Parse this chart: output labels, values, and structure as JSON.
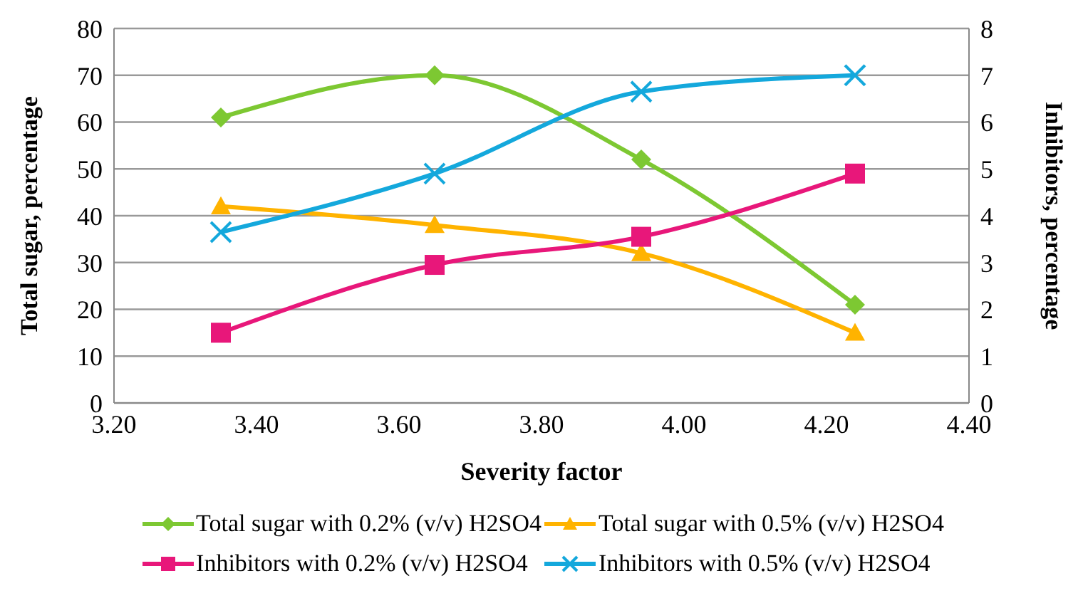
{
  "chart_data": {
    "type": "line",
    "xlabel": "Severity factor",
    "ylabel": "Total sugar, percentage",
    "y2label": "Inhibitors, percentage",
    "x": [
      3.35,
      3.65,
      3.94,
      4.24
    ],
    "xlim": [
      3.2,
      4.4
    ],
    "xticks": [
      {
        "value": 3.2,
        "label": "3.20"
      },
      {
        "value": 3.4,
        "label": "3.40"
      },
      {
        "value": 3.6,
        "label": "3.60"
      },
      {
        "value": 3.8,
        "label": "3.80"
      },
      {
        "value": 4.0,
        "label": "4.00"
      },
      {
        "value": 4.2,
        "label": "4.20"
      },
      {
        "value": 4.4,
        "label": "4.40"
      }
    ],
    "ylim": [
      0,
      80
    ],
    "yticks": [
      0,
      10,
      20,
      30,
      40,
      50,
      60,
      70,
      80
    ],
    "y2lim": [
      0,
      8
    ],
    "y2ticks": [
      0,
      1,
      2,
      3,
      4,
      5,
      6,
      7,
      8
    ],
    "grid": "y",
    "legend": "bottom",
    "series": [
      {
        "name": "Total sugar with 0.2% (v/v) H2SO4",
        "color": "#7dc832",
        "marker": "diamond",
        "values": [
          61,
          70,
          52,
          21
        ]
      },
      {
        "name": "Total sugar with 0.5% (v/v) H2SO4",
        "color": "#ffb300",
        "marker": "triangle",
        "values": [
          42,
          38,
          32,
          15
        ]
      },
      {
        "name": "Inhibitors with 0.2% (v/v) H2SO4",
        "color": "#e8177a",
        "marker": "square",
        "axis": "y2",
        "values": [
          1.5,
          2.95,
          3.55,
          4.9
        ]
      },
      {
        "name": "Inhibitors with 0.5% (v/v) H2SO4",
        "color": "#14a8dc",
        "marker": "cross",
        "axis": "y2",
        "values": [
          3.65,
          4.9,
          6.65,
          7.0
        ]
      }
    ]
  }
}
